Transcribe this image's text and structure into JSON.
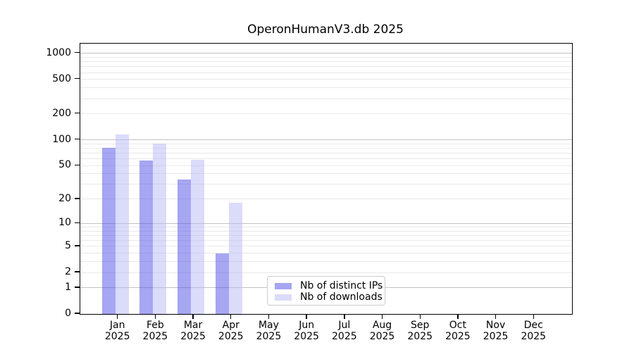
{
  "chart_data": {
    "type": "bar",
    "title": "OperonHumanV3.db 2025",
    "year_label": "2025",
    "categories": [
      "Jan",
      "Feb",
      "Mar",
      "Apr",
      "May",
      "Jun",
      "Jul",
      "Aug",
      "Sep",
      "Oct",
      "Nov",
      "Dec"
    ],
    "series": [
      {
        "name": "Nb of distinct IPs",
        "color": "rgba(77,77,229,0.5)",
        "solid_color": "#a6a6f2",
        "values": [
          81,
          57,
          34,
          4,
          0,
          0,
          0,
          0,
          0,
          0,
          0,
          0
        ]
      },
      {
        "name": "Nb of downloads",
        "color": "rgba(183,183,245,0.5)",
        "solid_color": "#dbdbfa",
        "values": [
          115,
          91,
          59,
          18,
          0,
          0,
          0,
          0,
          0,
          0,
          0,
          0
        ]
      }
    ],
    "xlabel": "",
    "ylabel": "",
    "y_ticks": [
      0,
      1,
      2,
      5,
      10,
      20,
      50,
      100,
      200,
      500,
      1000
    ],
    "y_scale": "log10(1+value)",
    "ylim": [
      0,
      1300
    ],
    "grid": "on",
    "legend_position": "inside-lower-center"
  },
  "colors": {
    "background": "#ffffff",
    "spine": "#000000",
    "grid_major": "#c3c3c3",
    "grid_minor": "#e9e9e9",
    "text": "#000000",
    "legend_border": "#cccccc"
  }
}
